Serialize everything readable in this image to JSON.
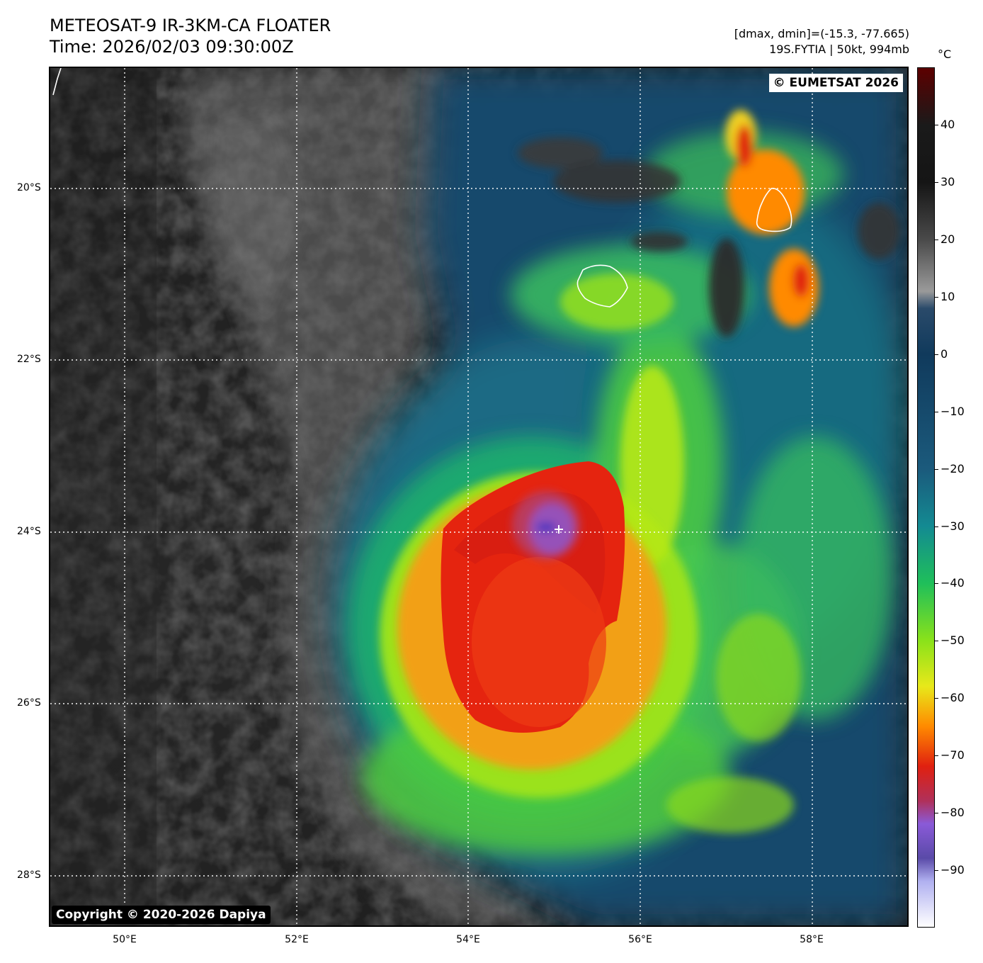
{
  "header": {
    "title_line1": "METEOSAT-9 IR-3KM-CA FLOATER",
    "title_line2": "Time: 2026/02/03 09:30:00Z",
    "info_line1": "[dmax, dmin]=(-15.3, -77.665)",
    "info_line2": "19S.FYTIA | 50kt, 994mb"
  },
  "map": {
    "credit": "© EUMETSAT 2026",
    "copyright": "Copyright © 2020-2026 Dapiya",
    "lat_labels": [
      "20°S",
      "22°S",
      "24°S",
      "26°S",
      "28°S"
    ],
    "lon_labels": [
      "50°E",
      "52°E",
      "54°E",
      "56°E",
      "58°E"
    ],
    "storm": {
      "center_marker": "plus-marker",
      "colors": {
        "cold_core": "#e01f10",
        "eye_purple": "#7a66d0",
        "bands": "#9be21a",
        "outer": "#1e6f82",
        "clear_sky": "#2a2a2a"
      }
    },
    "islands": [
      "reunion-outline",
      "mauritius-outline"
    ]
  },
  "colorbar": {
    "unit": "°C",
    "ticks": [
      "40",
      "30",
      "20",
      "10",
      "0",
      "−10",
      "−20",
      "−30",
      "−40",
      "−50",
      "−60",
      "−70",
      "−80",
      "−90"
    ],
    "range": [
      -100,
      50
    ],
    "stops": [
      {
        "t": 50,
        "color": "#5c0000"
      },
      {
        "t": 40,
        "color": "#1a1a1a"
      },
      {
        "t": 30,
        "color": "#151515"
      },
      {
        "t": 20,
        "color": "#4a4a4a"
      },
      {
        "t": 11,
        "color": "#9a9a9a"
      },
      {
        "t": 8,
        "color": "#2a4a6a"
      },
      {
        "t": 0,
        "color": "#103a5c"
      },
      {
        "t": -20,
        "color": "#1b5a7c"
      },
      {
        "t": -30,
        "color": "#138a92"
      },
      {
        "t": -40,
        "color": "#1fbf5a"
      },
      {
        "t": -50,
        "color": "#8ae21a"
      },
      {
        "t": -58,
        "color": "#e8e81a"
      },
      {
        "t": -65,
        "color": "#ff8a00"
      },
      {
        "t": -72,
        "color": "#e02010"
      },
      {
        "t": -78,
        "color": "#b0305a"
      },
      {
        "t": -82,
        "color": "#8a5ad8"
      },
      {
        "t": -88,
        "color": "#5a4aa8"
      },
      {
        "t": -92,
        "color": "#b0b0f0"
      },
      {
        "t": -100,
        "color": "#ffffff"
      }
    ]
  }
}
